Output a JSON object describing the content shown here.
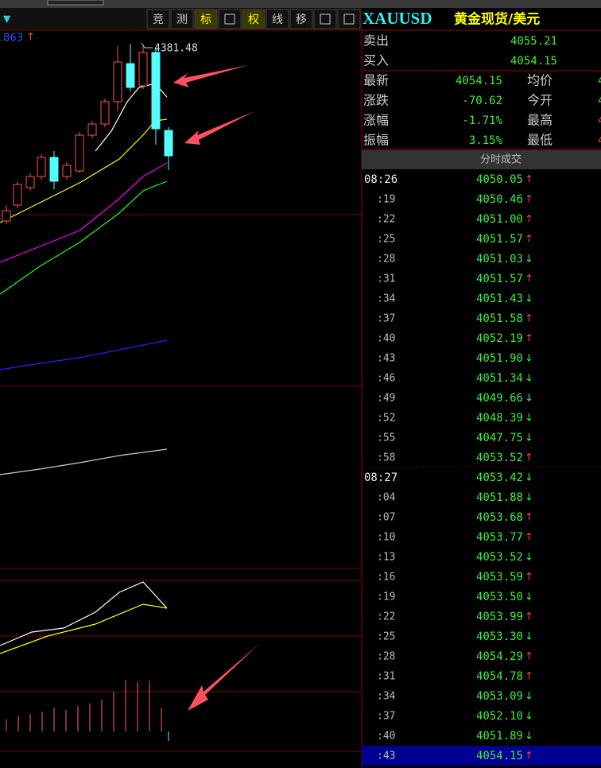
{
  "toolbar": {
    "menu_marker": "▼",
    "buttons": [
      "竞",
      "测",
      "标",
      "权",
      "线",
      "移"
    ]
  },
  "chart": {
    "price_label": ".863",
    "price_marker": "↑",
    "high_label": "4381.48"
  },
  "quote": {
    "symbol": "XAUUSD",
    "name": "黄金现货/美元",
    "sell_label": "卖出",
    "sell": "4055.21",
    "buy_label": "买入",
    "buy": "4054.15",
    "rows": [
      [
        "最新",
        "4054.15",
        "均价",
        "4"
      ],
      [
        "涨跌",
        "-70.62",
        "今开",
        "4"
      ],
      [
        "涨幅",
        "-1.71%",
        "最高",
        "4"
      ],
      [
        "振幅",
        "3.15%",
        "最低",
        "4"
      ]
    ]
  },
  "trades": {
    "title": "分时成交",
    "rows": [
      [
        "08:26",
        "4050.05",
        "↑"
      ],
      [
        ":19",
        "4050.46",
        "↑"
      ],
      [
        ":22",
        "4051.00",
        "↑"
      ],
      [
        ":25",
        "4051.57",
        "↑"
      ],
      [
        ":28",
        "4051.03",
        "↓"
      ],
      [
        ":31",
        "4051.57",
        "↑"
      ],
      [
        ":34",
        "4051.43",
        "↓"
      ],
      [
        ":37",
        "4051.58",
        "↑"
      ],
      [
        ":40",
        "4052.19",
        "↑"
      ],
      [
        ":43",
        "4051.90",
        "↓"
      ],
      [
        ":46",
        "4051.34",
        "↓"
      ],
      [
        ":49",
        "4049.66",
        "↓"
      ],
      [
        ":52",
        "4048.39",
        "↓"
      ],
      [
        ":55",
        "4047.75",
        "↓"
      ],
      [
        ":58",
        "4053.52",
        "↑"
      ],
      [
        "08:27",
        "4053.42",
        "↓"
      ],
      [
        ":04",
        "4051.88",
        "↓"
      ],
      [
        ":07",
        "4053.68",
        "↑"
      ],
      [
        ":10",
        "4053.77",
        "↑"
      ],
      [
        ":13",
        "4053.52",
        "↓"
      ],
      [
        ":16",
        "4053.59",
        "↑"
      ],
      [
        ":19",
        "4053.50",
        "↓"
      ],
      [
        ":22",
        "4053.99",
        "↑"
      ],
      [
        ":25",
        "4053.30",
        "↓"
      ],
      [
        ":28",
        "4054.29",
        "↑"
      ],
      [
        ":31",
        "4054.78",
        "↑"
      ],
      [
        ":34",
        "4053.09",
        "↓"
      ],
      [
        ":37",
        "4052.10",
        "↓"
      ],
      [
        ":40",
        "4051.89",
        "↓"
      ],
      [
        ":43",
        "4054.15",
        "↑"
      ]
    ]
  }
}
